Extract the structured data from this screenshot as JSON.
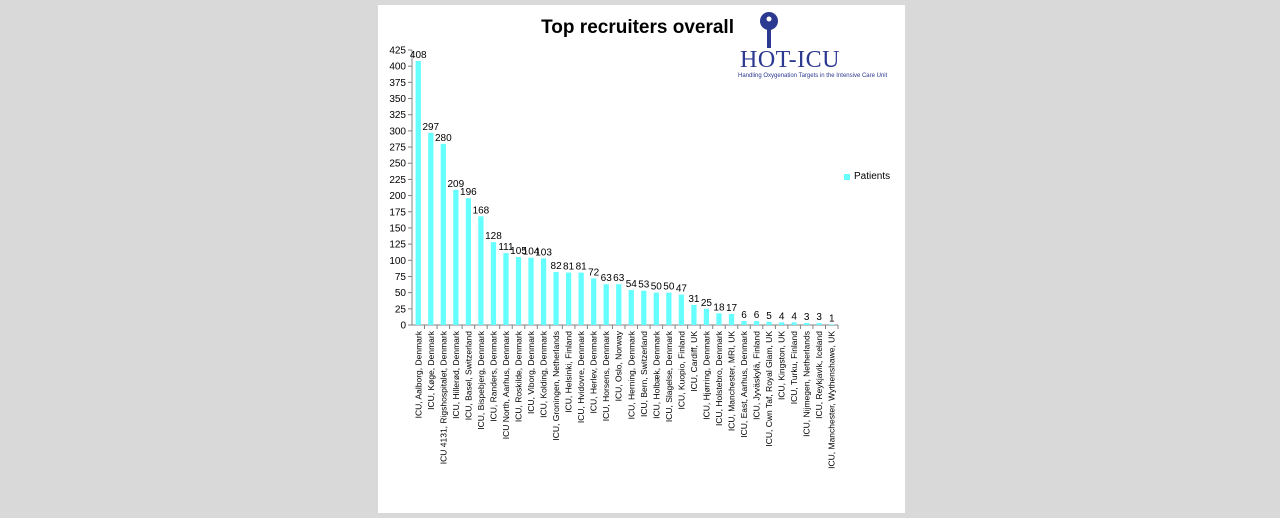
{
  "title": "Top recruiters overall",
  "logo": {
    "name": "HOT-ICU",
    "subtitle": "Handling Oxygenation Targets in the Intensive Care Unit",
    "color": "#2b3990"
  },
  "colors": {
    "bar": "#66ffff",
    "axis": "#808080",
    "background": "#ffffff",
    "page": "#d9d9d9"
  },
  "chart_data": {
    "type": "bar",
    "title": "Top recruiters overall",
    "xlabel": "",
    "ylabel": "",
    "ylim": [
      0,
      425
    ],
    "yticks": [
      0,
      25,
      50,
      75,
      100,
      125,
      150,
      175,
      200,
      225,
      250,
      275,
      300,
      325,
      350,
      375,
      400,
      425
    ],
    "grid": false,
    "legend": "right",
    "categories": [
      "ICU, Aalborg, Denmark",
      "ICU, Køge, Denmark",
      "ICU 4131, Rigshospitalet, Denmark",
      "ICU, Hillerød, Denmark",
      "ICU, Basel, Switzerland",
      "ICU, Bispebjerg, Denmark",
      "ICU, Randers, Denmark",
      "ICU North, Aarhus, Denmark",
      "ICU, Roskilde, Denmark",
      "ICU, Viborg, Denmark",
      "ICU, Kolding, Denmark",
      "ICU, Groningen, Netherlands",
      "ICU, Helsinki, Finland",
      "ICU, Hvidovre, Denmark",
      "ICU, Herlev, Denmark",
      "ICU, Horsens, Denmark",
      "ICU, Oslo, Norway",
      "ICU, Herning, Denmark",
      "ICU, Bern, Switzerland",
      "ICU, Holbæk, Denmark",
      "ICU, Slagelse, Denmark",
      "ICU, Kuopio, Finland",
      "ICU, Cardiff, UK",
      "ICU, Hjørring, Denmark",
      "ICU, Holstebro, Denmark",
      "ICU, Manchester, MRI, UK",
      "ICU, East, Aarhus, Denmark",
      "ICU, Jyväskylä, Finland",
      "ICU, Cwn Taf, Royal Glam, UK",
      "ICU, Kingston, UK",
      "ICU, Turku, Finland",
      "ICU, Nijmegen, Netherlands",
      "ICU, Reykjavik, Iceland",
      "ICU, Manchester, Wythenshawe, UK"
    ],
    "series": [
      {
        "name": "Patients",
        "values": [
          408,
          297,
          280,
          209,
          196,
          168,
          128,
          111,
          105,
          104,
          103,
          82,
          81,
          81,
          72,
          63,
          63,
          54,
          53,
          50,
          50,
          47,
          31,
          25,
          18,
          17,
          6,
          6,
          5,
          4,
          4,
          3,
          3,
          1
        ]
      }
    ]
  }
}
